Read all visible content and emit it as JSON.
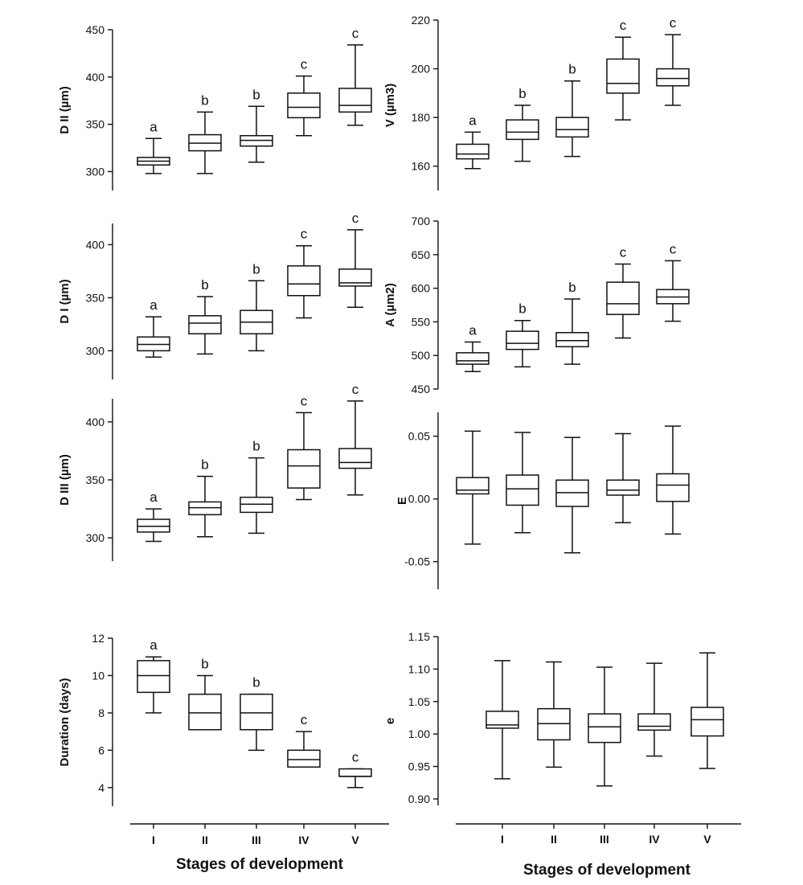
{
  "chart_data": [
    {
      "type": "box",
      "ylabel": "D II (µm)",
      "categories": [
        "I",
        "II",
        "III",
        "IV",
        "V"
      ],
      "ylim": [
        280,
        450
      ],
      "yticks": [
        300,
        350,
        400,
        450
      ],
      "tick_labels": [
        "300",
        "350",
        "400",
        "450"
      ],
      "boxes": [
        {
          "min": 298,
          "q1": 307,
          "median": 311,
          "q3": 315,
          "max": 335,
          "letter": "a"
        },
        {
          "min": 298,
          "q1": 322,
          "median": 330,
          "q3": 339,
          "max": 363,
          "letter": "b"
        },
        {
          "min": 310,
          "q1": 327,
          "median": 333,
          "q3": 338,
          "max": 369,
          "letter": "b"
        },
        {
          "min": 338,
          "q1": 357,
          "median": 368,
          "q3": 383,
          "max": 401,
          "letter": "c"
        },
        {
          "min": 349,
          "q1": 363,
          "median": 370,
          "q3": 388,
          "max": 434,
          "letter": "c"
        }
      ]
    },
    {
      "type": "box",
      "ylabel": "V (µm3)",
      "categories": [
        "I",
        "II",
        "III",
        "IV",
        "V"
      ],
      "ylim": [
        150,
        220
      ],
      "yticks": [
        160,
        180,
        200,
        220
      ],
      "tick_labels": [
        "160",
        "180",
        "200",
        "220"
      ],
      "boxes": [
        {
          "min": 159,
          "q1": 163,
          "median": 165,
          "q3": 169,
          "max": 174,
          "letter": "a"
        },
        {
          "min": 162,
          "q1": 171,
          "median": 174,
          "q3": 179,
          "max": 185,
          "letter": "b"
        },
        {
          "min": 164,
          "q1": 172,
          "median": 175,
          "q3": 180,
          "max": 195,
          "letter": "b"
        },
        {
          "min": 179,
          "q1": 190,
          "median": 194,
          "q3": 204,
          "max": 213,
          "letter": "c"
        },
        {
          "min": 185,
          "q1": 193,
          "median": 196,
          "q3": 200,
          "max": 214,
          "letter": "c"
        }
      ]
    },
    {
      "type": "box",
      "ylabel": "D I (µm)",
      "categories": [
        "I",
        "II",
        "III",
        "IV",
        "V"
      ],
      "ylim": [
        273,
        420
      ],
      "yticks": [
        300,
        350,
        400
      ],
      "tick_labels": [
        "300",
        "350",
        "400"
      ],
      "boxes": [
        {
          "min": 294,
          "q1": 300,
          "median": 306,
          "q3": 313,
          "max": 332,
          "letter": "a"
        },
        {
          "min": 297,
          "q1": 316,
          "median": 326,
          "q3": 333,
          "max": 351,
          "letter": "b"
        },
        {
          "min": 300,
          "q1": 316,
          "median": 327,
          "q3": 338,
          "max": 366,
          "letter": "b"
        },
        {
          "min": 331,
          "q1": 352,
          "median": 363,
          "q3": 380,
          "max": 399,
          "letter": "c"
        },
        {
          "min": 341,
          "q1": 361,
          "median": 364,
          "q3": 377,
          "max": 414,
          "letter": "c"
        }
      ]
    },
    {
      "type": "box",
      "ylabel": "A (µm2)",
      "categories": [
        "I",
        "II",
        "III",
        "IV",
        "V"
      ],
      "ylim": [
        450,
        700
      ],
      "yticks": [
        450,
        500,
        550,
        600,
        650,
        700
      ],
      "tick_labels": [
        "450",
        "500",
        "550",
        "600",
        "650",
        "700"
      ],
      "boxes": [
        {
          "min": 476,
          "q1": 487,
          "median": 492,
          "q3": 504,
          "max": 520,
          "letter": "a"
        },
        {
          "min": 483,
          "q1": 509,
          "median": 518,
          "q3": 536,
          "max": 552,
          "letter": "b"
        },
        {
          "min": 487,
          "q1": 513,
          "median": 522,
          "q3": 534,
          "max": 584,
          "letter": "b"
        },
        {
          "min": 526,
          "q1": 561,
          "median": 577,
          "q3": 609,
          "max": 636,
          "letter": "c"
        },
        {
          "min": 551,
          "q1": 577,
          "median": 587,
          "q3": 598,
          "max": 641,
          "letter": "c"
        }
      ]
    },
    {
      "type": "box",
      "ylabel": "D III (µm)",
      "categories": [
        "I",
        "II",
        "III",
        "IV",
        "V"
      ],
      "ylim": [
        280,
        420
      ],
      "yticks": [
        300,
        350,
        400
      ],
      "tick_labels": [
        "300",
        "350",
        "400"
      ],
      "boxes": [
        {
          "min": 297,
          "q1": 305,
          "median": 310,
          "q3": 316,
          "max": 325,
          "letter": "a"
        },
        {
          "min": 301,
          "q1": 320,
          "median": 326,
          "q3": 331,
          "max": 353,
          "letter": "b"
        },
        {
          "min": 304,
          "q1": 322,
          "median": 329,
          "q3": 335,
          "max": 369,
          "letter": "b"
        },
        {
          "min": 333,
          "q1": 343,
          "median": 362,
          "q3": 376,
          "max": 408,
          "letter": "c"
        },
        {
          "min": 337,
          "q1": 360,
          "median": 365,
          "q3": 377,
          "max": 418,
          "letter": "c"
        }
      ]
    },
    {
      "type": "box",
      "ylabel": "E",
      "categories": [
        "I",
        "II",
        "III",
        "IV",
        "V"
      ],
      "ylim": [
        -0.072,
        0.069
      ],
      "yticks": [
        -0.05,
        0.0,
        0.05
      ],
      "tick_labels": [
        "-0.05",
        "0.00",
        "0.05"
      ],
      "boxes": [
        {
          "min": -0.036,
          "q1": 0.004,
          "median": 0.007,
          "q3": 0.017,
          "max": 0.054,
          "letter": ""
        },
        {
          "min": -0.027,
          "q1": -0.005,
          "median": 0.008,
          "q3": 0.019,
          "max": 0.053,
          "letter": ""
        },
        {
          "min": -0.043,
          "q1": -0.006,
          "median": 0.005,
          "q3": 0.015,
          "max": 0.049,
          "letter": ""
        },
        {
          "min": -0.019,
          "q1": 0.003,
          "median": 0.007,
          "q3": 0.015,
          "max": 0.052,
          "letter": ""
        },
        {
          "min": -0.028,
          "q1": -0.002,
          "median": 0.011,
          "q3": 0.02,
          "max": 0.058,
          "letter": ""
        }
      ]
    },
    {
      "type": "box",
      "ylabel": "Duration (days)",
      "xlabel": "Stages of development",
      "categories": [
        "I",
        "II",
        "III",
        "IV",
        "V"
      ],
      "ylim": [
        3,
        12
      ],
      "yticks": [
        4,
        6,
        8,
        10,
        12
      ],
      "tick_labels": [
        "4",
        "6",
        "8",
        "10",
        "12"
      ],
      "boxes": [
        {
          "min": 8,
          "q1": 9.1,
          "median": 10,
          "q3": 10.8,
          "max": 11,
          "letter": "a"
        },
        {
          "min": 7.1,
          "q1": 7.1,
          "median": 8,
          "q3": 9,
          "max": 10,
          "letter": "b"
        },
        {
          "min": 6,
          "q1": 7.1,
          "median": 8,
          "q3": 9,
          "max": 9,
          "letter": "b"
        },
        {
          "min": 5.1,
          "q1": 5.1,
          "median": 5.5,
          "q3": 6,
          "max": 7,
          "letter": "c"
        },
        {
          "min": 4,
          "q1": 4.6,
          "median": 4.6,
          "q3": 5,
          "max": 5,
          "letter": "c"
        }
      ]
    },
    {
      "type": "box",
      "ylabel": "e",
      "xlabel": "Stages of development",
      "categories": [
        "I",
        "II",
        "III",
        "IV",
        "V"
      ],
      "ylim": [
        0.89,
        1.15
      ],
      "yticks": [
        0.9,
        0.95,
        1.0,
        1.05,
        1.1,
        1.15
      ],
      "tick_labels": [
        "0.90",
        "0.95",
        "1.00",
        "1.05",
        "1.10",
        "1.15"
      ],
      "boxes": [
        {
          "min": 0.931,
          "q1": 1.009,
          "median": 1.014,
          "q3": 1.035,
          "max": 1.113,
          "letter": ""
        },
        {
          "min": 0.949,
          "q1": 0.991,
          "median": 1.016,
          "q3": 1.039,
          "max": 1.111,
          "letter": ""
        },
        {
          "min": 0.92,
          "q1": 0.987,
          "median": 1.011,
          "q3": 1.031,
          "max": 1.103,
          "letter": ""
        },
        {
          "min": 0.966,
          "q1": 1.006,
          "median": 1.012,
          "q3": 1.031,
          "max": 1.109,
          "letter": ""
        },
        {
          "min": 0.947,
          "q1": 0.997,
          "median": 1.022,
          "q3": 1.041,
          "max": 1.125,
          "letter": ""
        }
      ]
    }
  ]
}
